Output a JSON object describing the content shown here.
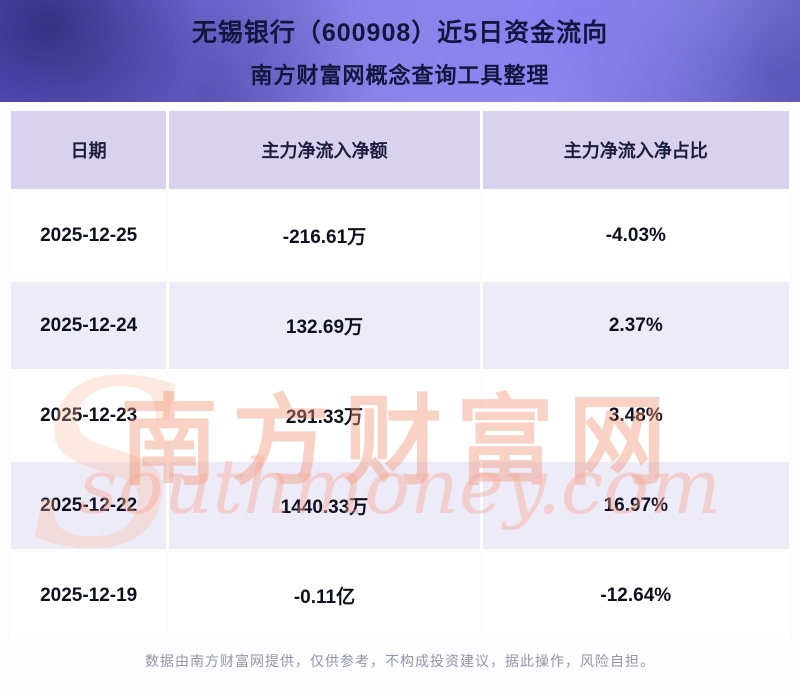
{
  "banner": {
    "title": "无锡银行（600908）近5日资金流向",
    "subtitle": "南方财富网概念查询工具整理"
  },
  "chart_data": {
    "type": "table",
    "title": "无锡银行（600908）近5日资金流向",
    "subtitle": "南方财富网概念查询工具整理",
    "columns": [
      "日期",
      "主力净流入净额",
      "主力净流入净占比"
    ],
    "rows": [
      [
        "2025-12-25",
        "-216.61万",
        "-4.03%"
      ],
      [
        "2025-12-24",
        "132.69万",
        "2.37%"
      ],
      [
        "2025-12-23",
        "291.33万",
        "3.48%"
      ],
      [
        "2025-12-22",
        "1440.33万",
        "16.97%"
      ],
      [
        "2025-12-19",
        "-0.11亿",
        "-12.64%"
      ]
    ]
  },
  "watermark": {
    "swirl": "S",
    "brand_cn": "南方财富网",
    "brand_en": "southmoney.com"
  },
  "footer": {
    "disclaimer": "数据由南方财富网提供，仅供参考，不构成投资建议，据此操作，风险自担。"
  },
  "colors": {
    "banner_purple": "#8b80e6",
    "title_text": "#15153f",
    "header_bg": "#d8d2f0",
    "row_alt_bg": "#eeebf9",
    "cell_text": "#101020",
    "watermark_orange": "#f19474",
    "footer_text": "#9494ac"
  }
}
